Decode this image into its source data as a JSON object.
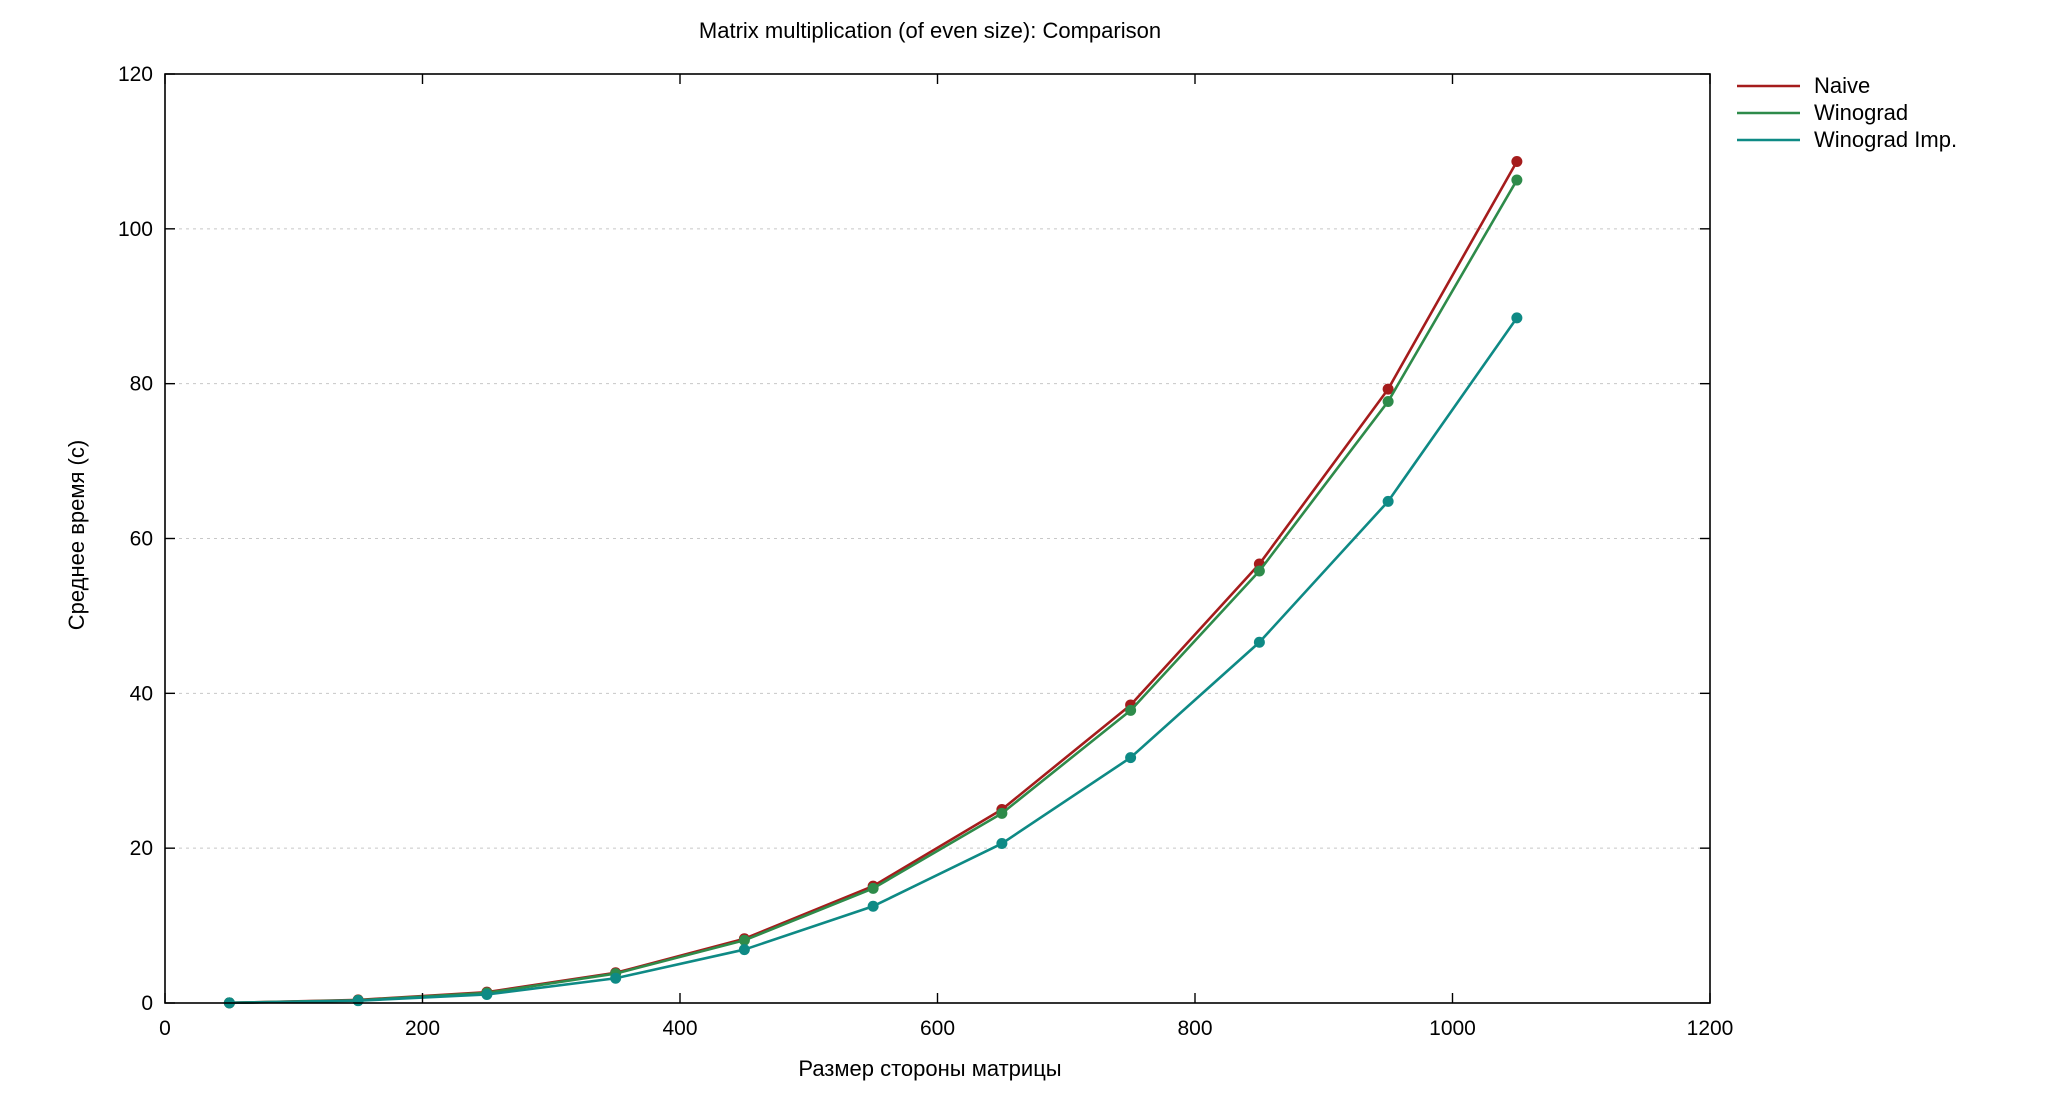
{
  "chart_data": {
    "type": "line",
    "title": "Matrix multiplication (of even size): Comparison",
    "xlabel": "Размер стороны матрицы",
    "ylabel": "Среднее время (с)",
    "xlim": [
      0,
      1200
    ],
    "ylim": [
      0,
      120
    ],
    "xticks": [
      0,
      200,
      400,
      600,
      800,
      1000,
      1200
    ],
    "yticks": [
      0,
      20,
      40,
      60,
      80,
      100,
      120
    ],
    "grid": "horizontal dashed",
    "legend_position": "outside-top-right",
    "x": [
      50,
      150,
      250,
      350,
      450,
      550,
      650,
      750,
      850,
      950,
      1050
    ],
    "series": [
      {
        "name": "Naive",
        "color": "#a51c1c",
        "values": [
          0.02,
          0.4,
          1.4,
          3.9,
          8.3,
          15.1,
          25.0,
          38.5,
          56.7,
          79.3,
          108.7
        ]
      },
      {
        "name": "Winograd",
        "color": "#2e8b4a",
        "values": [
          0.02,
          0.35,
          1.3,
          3.8,
          8.1,
          14.8,
          24.5,
          37.8,
          55.8,
          77.7,
          106.3
        ]
      },
      {
        "name": "Winograd Imp.",
        "color": "#0e8a85",
        "values": [
          0.02,
          0.3,
          1.1,
          3.2,
          6.9,
          12.5,
          20.6,
          31.7,
          46.6,
          64.8,
          88.5
        ]
      }
    ]
  }
}
